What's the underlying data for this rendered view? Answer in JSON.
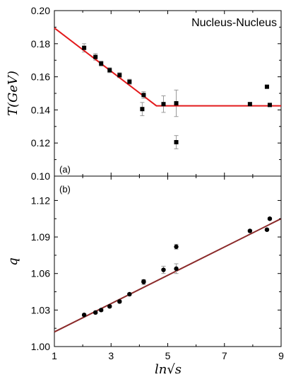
{
  "chart_data": [
    {
      "type": "scatter",
      "panel_label": "(a)",
      "annotation": "Nucleus-Nucleus",
      "ylabel": "T(GeV)",
      "xlim": [
        1,
        9
      ],
      "ylim": [
        0.1,
        0.2
      ],
      "y_ticks": [
        "0.20",
        "0.18",
        "0.16",
        "0.14",
        "0.12",
        "0.10"
      ],
      "grid": false,
      "points": [
        {
          "x": 2.05,
          "y": 0.1775,
          "err": 0.0025
        },
        {
          "x": 2.45,
          "y": 0.172,
          "err": 0.002
        },
        {
          "x": 2.65,
          "y": 0.168,
          "err": 0.0015
        },
        {
          "x": 2.95,
          "y": 0.164,
          "err": 0.0015
        },
        {
          "x": 3.3,
          "y": 0.161,
          "err": 0.0015
        },
        {
          "x": 3.65,
          "y": 0.157,
          "err": 0.0015
        },
        {
          "x": 4.15,
          "y": 0.149,
          "err": 0.002
        },
        {
          "x": 4.1,
          "y": 0.1405,
          "err": 0.004
        },
        {
          "x": 4.85,
          "y": 0.1435,
          "err": 0.005
        },
        {
          "x": 5.3,
          "y": 0.144,
          "err": 0.008
        },
        {
          "x": 5.3,
          "y": 0.1205,
          "err": 0.004
        },
        {
          "x": 7.9,
          "y": 0.1435,
          "err": 0.001
        },
        {
          "x": 8.5,
          "y": 0.154,
          "err": 0.0005
        },
        {
          "x": 8.6,
          "y": 0.143,
          "err": 0.0005
        }
      ],
      "fit_line": {
        "color": "#e31a1c",
        "points": [
          [
            1,
            0.1895
          ],
          [
            4.6,
            0.1425
          ],
          [
            9,
            0.1425
          ]
        ]
      }
    },
    {
      "type": "scatter",
      "panel_label": "(b)",
      "xlabel": "ln√s",
      "ylabel": "q",
      "xlim": [
        1,
        9
      ],
      "ylim": [
        1.0,
        1.14
      ],
      "x_ticks": [
        "1",
        "3",
        "5",
        "7",
        "9"
      ],
      "y_ticks": [
        "1.12",
        "1.09",
        "1.06",
        "1.03",
        "1.00"
      ],
      "grid": false,
      "points": [
        {
          "x": 2.05,
          "y": 1.026,
          "err": 0.001
        },
        {
          "x": 2.45,
          "y": 1.028,
          "err": 0.001
        },
        {
          "x": 2.65,
          "y": 1.03,
          "err": 0.001
        },
        {
          "x": 2.95,
          "y": 1.033,
          "err": 0.001
        },
        {
          "x": 3.3,
          "y": 1.037,
          "err": 0.001
        },
        {
          "x": 3.65,
          "y": 1.043,
          "err": 0.001
        },
        {
          "x": 4.15,
          "y": 1.053,
          "err": 0.002
        },
        {
          "x": 4.15,
          "y": 1.0535,
          "err": 0.001
        },
        {
          "x": 4.85,
          "y": 1.063,
          "err": 0.003
        },
        {
          "x": 5.3,
          "y": 1.064,
          "err": 0.004
        },
        {
          "x": 5.3,
          "y": 1.082,
          "err": 0.002
        },
        {
          "x": 7.9,
          "y": 1.095,
          "err": 0.001
        },
        {
          "x": 8.5,
          "y": 1.096,
          "err": 0.001
        },
        {
          "x": 8.6,
          "y": 1.105,
          "err": 0.001
        }
      ],
      "fit_line": {
        "color": "#8b2a2a",
        "points": [
          [
            1,
            1.012
          ],
          [
            9,
            1.105
          ]
        ]
      }
    }
  ]
}
